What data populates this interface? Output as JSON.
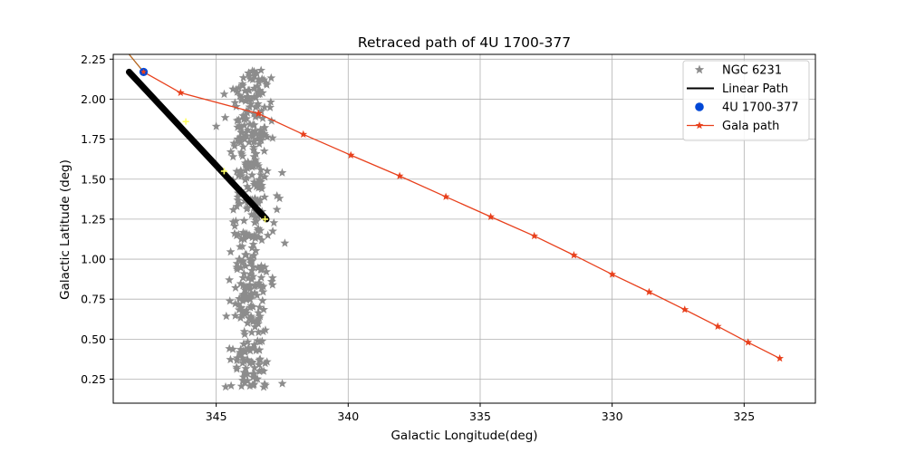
{
  "chart_data": {
    "type": "scatter",
    "title": "Retraced path of 4U 1700-377",
    "xlabel": "Galactic Longitude(deg)",
    "ylabel": "Galactic Latitude (deg)",
    "xlim": [
      348.9,
      322.3
    ],
    "ylim": [
      0.1,
      2.28
    ],
    "x_inverted": true,
    "x_ticks": [
      345,
      340,
      335,
      330,
      325
    ],
    "x_tick_labels": [
      "345",
      "340",
      "335",
      "330",
      "325"
    ],
    "y_ticks": [
      0.25,
      0.5,
      0.75,
      1.0,
      1.25,
      1.5,
      1.75,
      2.0,
      2.25
    ],
    "y_tick_labels": [
      "0.25",
      "0.50",
      "0.75",
      "1.00",
      "1.25",
      "1.50",
      "1.75",
      "2.00",
      "2.25"
    ],
    "grid": true,
    "legend_position": "top-right",
    "legend": [
      "NGC 6231",
      "Linear Path",
      "4U 1700-377",
      "Gala path"
    ],
    "series": [
      {
        "name": "NGC 6231",
        "type": "scatter",
        "marker": "star",
        "color": "#8c8c8c",
        "cluster": {
          "points": 400,
          "x_center": 343.7,
          "x_spread": 0.9,
          "y_range": [
            0.2,
            2.18
          ],
          "note": "dense vertical band of grey stars"
        },
        "x": [
          345.0,
          344.3,
          344.1,
          343.3,
          343.2,
          342.7,
          342.6,
          342.5,
          342.4,
          344.5,
          344.0,
          343.6,
          343.2,
          342.9,
          343.9,
          343.5,
          343.1
        ],
        "y": [
          1.83,
          1.16,
          2.02,
          2.18,
          0.2,
          1.31,
          1.38,
          1.54,
          1.1,
          0.87,
          0.35,
          0.28,
          0.3,
          0.86,
          1.9,
          1.9,
          2.1
        ]
      },
      {
        "name": "Linear Path",
        "type": "line",
        "color": "#000000",
        "x": [
          348.3,
          343.1
        ],
        "y": [
          2.17,
          1.25
        ]
      },
      {
        "name": "Linear Path markers",
        "type": "scatter",
        "color": "#ffff66",
        "x": [
          346.15,
          344.7,
          343.15
        ],
        "y": [
          1.86,
          1.55,
          1.25
        ]
      },
      {
        "name": "4U 1700-377",
        "type": "scatter",
        "color": "#0047d6",
        "x": [
          347.75
        ],
        "y": [
          2.17
        ]
      },
      {
        "name": "Gala path",
        "type": "line",
        "marker": "star",
        "color": "#e8401c",
        "x": [
          347.75,
          346.35,
          343.4,
          341.7,
          339.9,
          338.05,
          336.3,
          334.6,
          332.95,
          331.45,
          330.0,
          328.6,
          327.25,
          326.0,
          324.85,
          323.65
        ],
        "y": [
          2.17,
          2.04,
          1.91,
          1.78,
          1.65,
          1.52,
          1.39,
          1.265,
          1.145,
          1.025,
          0.905,
          0.795,
          0.685,
          0.58,
          0.48,
          0.38
        ]
      },
      {
        "name": "Gala path extension",
        "type": "line",
        "color": "#b5651d",
        "x": [
          348.3,
          347.75
        ],
        "y": [
          2.28,
          2.17
        ]
      }
    ]
  }
}
